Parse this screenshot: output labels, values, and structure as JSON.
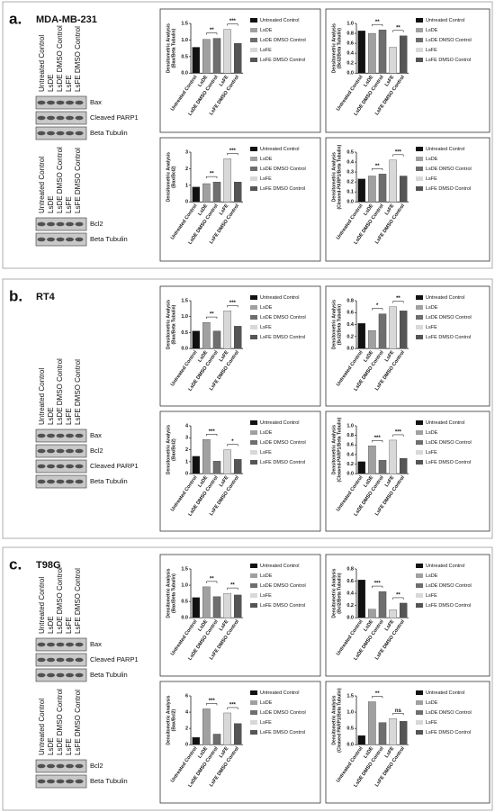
{
  "panels": [
    {
      "letter": "a.",
      "cell_line": "MDA-MB-231",
      "blots": [
        {
          "lanes": [
            "Untreated Control",
            "LsDE",
            "LsDE DMSO Control",
            "LsFE",
            "LsFE DMSO Control"
          ],
          "bands": [
            "Bax",
            "Cleaved PARP1",
            "Beta Tubulin"
          ]
        },
        {
          "lanes": [
            "Untreated Control",
            "LsDE",
            "LsDE DMSO Control",
            "LsFE",
            "LsFE DMSO Control"
          ],
          "bands": [
            "Bcl2",
            "Beta Tubulin"
          ]
        }
      ]
    },
    {
      "letter": "b.",
      "cell_line": "RT4",
      "blots": [
        {
          "lanes": [
            "Untreated Control",
            "LsDE",
            "LsDE DMSO Control",
            "LsFE",
            "LsFE DMSO Control"
          ],
          "bands": [
            "Bax",
            "Bcl2",
            "Cleaved PARP1",
            "Beta Tubulin"
          ]
        }
      ]
    },
    {
      "letter": "c.",
      "cell_line": "T98G",
      "blots": [
        {
          "lanes": [
            "Untreated Control",
            "LsDE",
            "LsDE DMSO Control",
            "LsFE",
            "LsFE DMSO Control"
          ],
          "bands": [
            "Bax",
            "Cleaved PARP1",
            "Beta Tubulin"
          ]
        },
        {
          "lanes": [
            "Untreated Control",
            "LsDE",
            "LsDE DMSO Control",
            "LsFE",
            "LsFE DMSO Control"
          ],
          "bands": [
            "Bcl2",
            "Beta Tubulin"
          ]
        }
      ]
    }
  ],
  "chart_data": [
    {
      "type": "bar",
      "ylabel": [
        "Densitometric Analysis",
        "(Bax/Beta Tubulin)"
      ],
      "categories": [
        "Untreated Control",
        "LsDE",
        "LsDE DMSO Control",
        "LsFE",
        "LsFE DMSO Control"
      ],
      "values": [
        0.78,
        1.02,
        1.05,
        1.32,
        0.9
      ],
      "colors": [
        "#111111",
        "#a0a0a0",
        "#6e6e6e",
        "#d8d8d8",
        "#555555"
      ],
      "ylim": [
        0,
        1.5
      ],
      "yticks": [
        {
          "value": 0,
          "label": "0.0"
        },
        {
          "value": 0.5,
          "label": "0.5"
        },
        {
          "value": 1,
          "label": "1.0"
        },
        {
          "value": 1.5,
          "label": "1.5"
        }
      ],
      "annotations": [
        {
          "label": "**",
          "between": [
            1,
            2
          ]
        },
        {
          "label": "***",
          "between": [
            3,
            4
          ]
        }
      ],
      "legend": "right"
    },
    {
      "type": "bar",
      "ylabel": [
        "Densitometric Analysis",
        "(Bcl2/Beta Tubulin)"
      ],
      "categories": [
        "Untreated Control",
        "LsDE",
        "LsDE DMSO Control",
        "LsFE",
        "LsFE DMSO Control"
      ],
      "values": [
        0.85,
        0.8,
        0.87,
        0.52,
        0.75
      ],
      "colors": [
        "#111111",
        "#a0a0a0",
        "#6e6e6e",
        "#d8d8d8",
        "#555555"
      ],
      "ylim": [
        0,
        1
      ],
      "yticks": [
        {
          "value": 0,
          "label": "0.0"
        },
        {
          "value": 0.2,
          "label": "0.2"
        },
        {
          "value": 0.4,
          "label": "0.4"
        },
        {
          "value": 0.6,
          "label": "0.6"
        },
        {
          "value": 0.8,
          "label": "0.8"
        },
        {
          "value": 1,
          "label": "1.0"
        }
      ],
      "annotations": [
        {
          "label": "**",
          "between": [
            1,
            2
          ]
        },
        {
          "label": "**",
          "between": [
            3,
            4
          ]
        }
      ],
      "legend": "right"
    },
    {
      "type": "bar",
      "ylabel": [
        "Densitometric Analysis",
        "(Bax/Bcl2)"
      ],
      "categories": [
        "Untreated Control",
        "LsDE",
        "LsDE DMSO Control",
        "LsFE",
        "LsFE DMSO Control"
      ],
      "values": [
        0.9,
        1.1,
        1.2,
        2.6,
        1.2
      ],
      "colors": [
        "#111111",
        "#a0a0a0",
        "#6e6e6e",
        "#d8d8d8",
        "#555555"
      ],
      "ylim": [
        0,
        3
      ],
      "yticks": [
        0,
        1,
        2,
        3
      ],
      "annotations": [
        {
          "label": "**",
          "between": [
            1,
            2
          ]
        },
        {
          "label": "***",
          "between": [
            3,
            4
          ]
        }
      ],
      "legend": "right"
    },
    {
      "type": "bar",
      "ylabel": [
        "Densitometric Analysis",
        "(Cleaved-PARP1/Beta Tubulin)"
      ],
      "categories": [
        "Untreated Control",
        "LsDE",
        "LsDE DMSO Control",
        "LsFE",
        "LsFE DMSO Control"
      ],
      "values": [
        0.23,
        0.26,
        0.28,
        0.42,
        0.26
      ],
      "colors": [
        "#111111",
        "#a0a0a0",
        "#6e6e6e",
        "#d8d8d8",
        "#555555"
      ],
      "ylim": [
        0,
        0.5
      ],
      "yticks": [
        {
          "value": 0,
          "label": "0.0"
        },
        {
          "value": 0.1,
          "label": "0.1"
        },
        {
          "value": 0.2,
          "label": "0.2"
        },
        {
          "value": 0.3,
          "label": "0.3"
        },
        {
          "value": 0.4,
          "label": "0.4"
        },
        {
          "value": 0.5,
          "label": "0.5"
        }
      ],
      "annotations": [
        {
          "label": "**",
          "between": [
            1,
            2
          ]
        },
        {
          "label": "***",
          "between": [
            3,
            4
          ]
        }
      ],
      "legend": "right"
    },
    {
      "type": "bar",
      "ylabel": [
        "Densitometric Analysis",
        "(Bax/Beta Tubulin)"
      ],
      "categories": [
        "Untreated Control",
        "LsDE",
        "LsDE DMSO Control",
        "LsFE",
        "LsFE DMSO Control"
      ],
      "values": [
        0.55,
        0.82,
        0.55,
        1.18,
        0.7
      ],
      "colors": [
        "#111111",
        "#a0a0a0",
        "#6e6e6e",
        "#d8d8d8",
        "#555555"
      ],
      "ylim": [
        0,
        1.5
      ],
      "yticks": [
        {
          "value": 0,
          "label": "0.0"
        },
        {
          "value": 0.5,
          "label": "0.5"
        },
        {
          "value": 1,
          "label": "1.0"
        },
        {
          "value": 1.5,
          "label": "1.5"
        }
      ],
      "annotations": [
        {
          "label": "**",
          "between": [
            1,
            2
          ]
        },
        {
          "label": "***",
          "between": [
            3,
            4
          ]
        }
      ],
      "legend": "right"
    },
    {
      "type": "bar",
      "ylabel": [
        "Densitometric Analysis",
        "(Bcl2/Beta Tubulin)"
      ],
      "categories": [
        "Untreated Control",
        "LsDE",
        "LsDE DMSO Control",
        "LsFE",
        "LsFE DMSO Control"
      ],
      "values": [
        0.42,
        0.3,
        0.58,
        0.7,
        0.63
      ],
      "colors": [
        "#111111",
        "#a0a0a0",
        "#6e6e6e",
        "#d8d8d8",
        "#555555"
      ],
      "ylim": [
        0,
        0.8
      ],
      "yticks": [
        {
          "value": 0,
          "label": "0.0"
        },
        {
          "value": 0.2,
          "label": "0.2"
        },
        {
          "value": 0.4,
          "label": "0.4"
        },
        {
          "value": 0.6,
          "label": "0.6"
        },
        {
          "value": 0.8,
          "label": "0.8"
        }
      ],
      "annotations": [
        {
          "label": "*",
          "between": [
            1,
            2
          ]
        },
        {
          "label": "**",
          "between": [
            3,
            4
          ]
        }
      ],
      "legend": "right"
    },
    {
      "type": "bar",
      "ylabel": [
        "Densitometric Analysis",
        "(Bax/Bcl2)"
      ],
      "categories": [
        "Untreated Control",
        "LsDE",
        "LsDE DMSO Control",
        "LsFE",
        "LsFE DMSO Control"
      ],
      "values": [
        1.45,
        2.85,
        1.05,
        2.0,
        1.2
      ],
      "colors": [
        "#111111",
        "#a0a0a0",
        "#6e6e6e",
        "#d8d8d8",
        "#555555"
      ],
      "ylim": [
        0,
        4
      ],
      "yticks": [
        0,
        1,
        2,
        3,
        4
      ],
      "annotations": [
        {
          "label": "***",
          "between": [
            1,
            2
          ]
        },
        {
          "label": "*",
          "between": [
            3,
            4
          ]
        }
      ],
      "legend": "right"
    },
    {
      "type": "bar",
      "ylabel": [
        "Densitometric Analysis",
        "(Cleaved-PARP1/Beta Tubulin)"
      ],
      "categories": [
        "Untreated Control",
        "LsDE",
        "LsDE DMSO Control",
        "LsFE",
        "LsFE DMSO Control"
      ],
      "values": [
        0.25,
        0.58,
        0.28,
        0.7,
        0.32
      ],
      "colors": [
        "#111111",
        "#a0a0a0",
        "#6e6e6e",
        "#d8d8d8",
        "#555555"
      ],
      "ylim": [
        0,
        1
      ],
      "yticks": [
        {
          "value": 0,
          "label": "0.0"
        },
        {
          "value": 0.2,
          "label": "0.2"
        },
        {
          "value": 0.4,
          "label": "0.4"
        },
        {
          "value": 0.6,
          "label": "0.6"
        },
        {
          "value": 0.8,
          "label": "0.8"
        },
        {
          "value": 1,
          "label": "1.0"
        }
      ],
      "annotations": [
        {
          "label": "***",
          "between": [
            1,
            2
          ]
        },
        {
          "label": "***",
          "between": [
            3,
            4
          ]
        }
      ],
      "legend": "right"
    },
    {
      "type": "bar",
      "ylabel": [
        "Densitometric Analysis",
        "(Bax/Beta Tubulin)"
      ],
      "categories": [
        "Untreated Control",
        "LsDE",
        "LsDE DMSO Control",
        "LsFE",
        "LsFE DMSO Control"
      ],
      "values": [
        0.62,
        0.95,
        0.65,
        0.75,
        0.7
      ],
      "colors": [
        "#111111",
        "#a0a0a0",
        "#6e6e6e",
        "#d8d8d8",
        "#555555"
      ],
      "ylim": [
        0,
        1.5
      ],
      "yticks": [
        {
          "value": 0,
          "label": "0.0"
        },
        {
          "value": 0.5,
          "label": "0.5"
        },
        {
          "value": 1,
          "label": "1.0"
        },
        {
          "value": 1.5,
          "label": "1.5"
        }
      ],
      "annotations": [
        {
          "label": "**",
          "between": [
            1,
            2
          ]
        },
        {
          "label": "**",
          "between": [
            3,
            4
          ]
        }
      ],
      "legend": "right"
    },
    {
      "type": "bar",
      "ylabel": [
        "Densitometric Analysis",
        "(Bcl2/Beta Tubulin)"
      ],
      "categories": [
        "Untreated Control",
        "LsDE",
        "LsDE DMSO Control",
        "LsFE",
        "LsFE DMSO Control"
      ],
      "values": [
        0.62,
        0.14,
        0.43,
        0.13,
        0.24
      ],
      "colors": [
        "#111111",
        "#a0a0a0",
        "#6e6e6e",
        "#d8d8d8",
        "#555555"
      ],
      "ylim": [
        0,
        0.8
      ],
      "yticks": [
        {
          "value": 0,
          "label": "0.0"
        },
        {
          "value": 0.2,
          "label": "0.2"
        },
        {
          "value": 0.4,
          "label": "0.4"
        },
        {
          "value": 0.6,
          "label": "0.6"
        },
        {
          "value": 0.8,
          "label": "0.8"
        }
      ],
      "annotations": [
        {
          "label": "***",
          "between": [
            1,
            2
          ]
        },
        {
          "label": "**",
          "between": [
            3,
            4
          ]
        }
      ],
      "legend": "right"
    },
    {
      "type": "bar",
      "ylabel": [
        "Densitometric Analysis",
        "(Bax/Bcl2)"
      ],
      "categories": [
        "Untreated Control",
        "LsDE",
        "LsDE DMSO Control",
        "LsFE",
        "LsFE DMSO Control"
      ],
      "values": [
        0.9,
        4.4,
        1.3,
        3.9,
        2.6
      ],
      "colors": [
        "#111111",
        "#a0a0a0",
        "#6e6e6e",
        "#d8d8d8",
        "#555555"
      ],
      "ylim": [
        0,
        6
      ],
      "yticks": [
        0,
        2,
        4,
        6
      ],
      "annotations": [
        {
          "label": "***",
          "between": [
            1,
            2
          ]
        },
        {
          "label": "***",
          "between": [
            3,
            4
          ]
        }
      ],
      "legend": "right"
    },
    {
      "type": "bar",
      "ylabel": [
        "Densitometric Analysis",
        "(Cleaved PARP1/Beta Tubulin)"
      ],
      "categories": [
        "Untreated Control",
        "LsDE",
        "LsDE DMSO Control",
        "LsFE",
        "LsFE DMSO Control"
      ],
      "values": [
        0.28,
        1.32,
        0.68,
        0.8,
        0.72
      ],
      "colors": [
        "#111111",
        "#a0a0a0",
        "#6e6e6e",
        "#d8d8d8",
        "#555555"
      ],
      "ylim": [
        0,
        1.5
      ],
      "yticks": [
        {
          "value": 0,
          "label": "0.0"
        },
        {
          "value": 0.5,
          "label": "0.5"
        },
        {
          "value": 1,
          "label": "1.0"
        },
        {
          "value": 1.5,
          "label": "1.5"
        }
      ],
      "annotations": [
        {
          "label": "**",
          "between": [
            1,
            2
          ]
        },
        {
          "label": "ns",
          "between": [
            3,
            4
          ]
        }
      ],
      "legend": "right"
    }
  ]
}
